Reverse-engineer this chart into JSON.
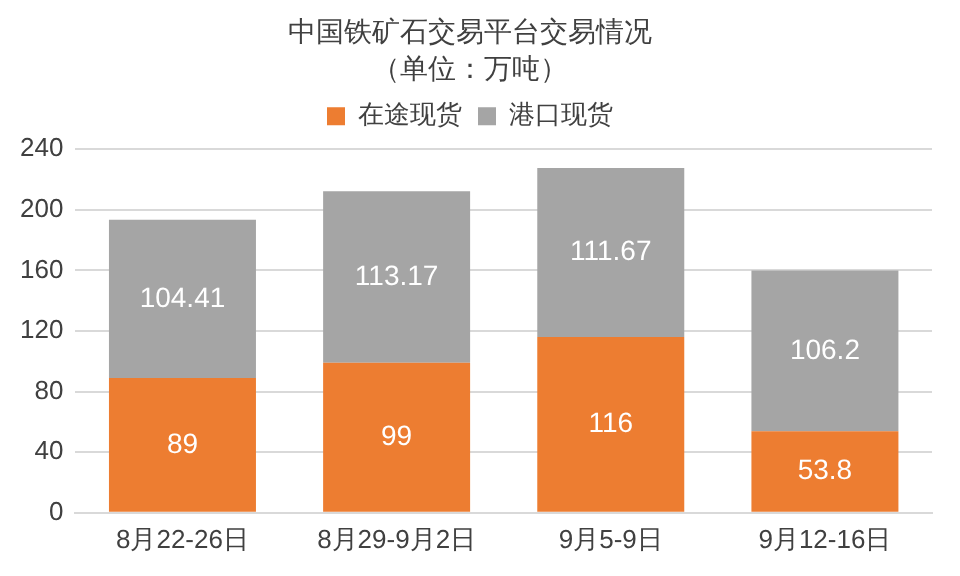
{
  "chart_data": {
    "type": "bar",
    "title": "中国铁矿石交易平台交易情况",
    "subtitle": "（单位：万吨）",
    "categories": [
      "8月22-26日",
      "8月29-9月2日",
      "9月5-9日",
      "9月12-16日"
    ],
    "series": [
      {
        "name": "在途现货",
        "color": "#ed7d31",
        "values": [
          89,
          99,
          116,
          53.8
        ]
      },
      {
        "name": "港口现货",
        "color": "#a5a5a5",
        "values": [
          104.41,
          113.17,
          111.67,
          106.2
        ]
      }
    ],
    "stacked": true,
    "ylim": [
      0,
      240
    ],
    "yticks": [
      0,
      40,
      80,
      120,
      160,
      200,
      240
    ],
    "grid": "y",
    "legend": "top",
    "data_labels": true
  }
}
